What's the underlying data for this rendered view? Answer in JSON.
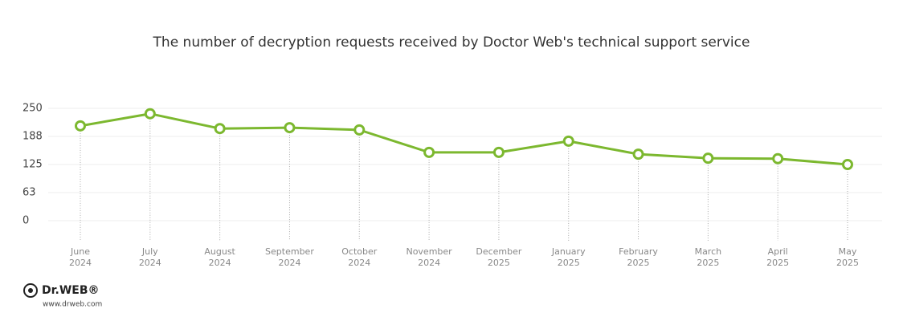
{
  "chart_data": {
    "type": "line",
    "title": "The number of decryption requests received by Doctor Web's technical support service",
    "categories": [
      [
        "June",
        "2024"
      ],
      [
        "July",
        "2024"
      ],
      [
        "August",
        "2024"
      ],
      [
        "September",
        "2024"
      ],
      [
        "October",
        "2024"
      ],
      [
        "November",
        "2024"
      ],
      [
        "December",
        "2025"
      ],
      [
        "January",
        "2025"
      ],
      [
        "February",
        "2025"
      ],
      [
        "March",
        "2025"
      ],
      [
        "April",
        "2025"
      ],
      [
        "May",
        "2025"
      ]
    ],
    "values": [
      211,
      238,
      205,
      207,
      202,
      152,
      152,
      177,
      148,
      139,
      138,
      125
    ],
    "color": "#7cb82f",
    "ylim": [
      0,
      250
    ],
    "yticks": [
      0,
      {
        "value": 62.5,
        "label": "63"
      },
      125,
      {
        "value": 187.5,
        "label": "188"
      },
      250
    ],
    "grid": true
  },
  "logo": {
    "brand": "Dr.WEB®",
    "url": "www.drweb.com"
  }
}
